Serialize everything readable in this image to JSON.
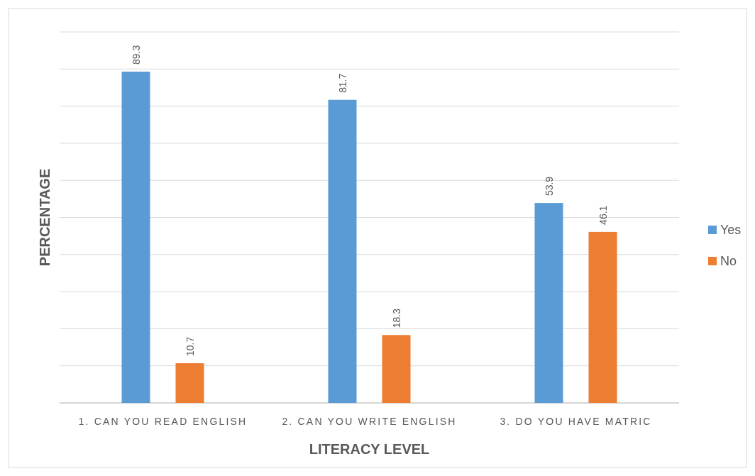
{
  "chart_data": {
    "type": "bar",
    "xlabel": "LITERACY LEVEL",
    "ylabel": "PERCENTAGE",
    "categories": [
      "1. CAN YOU READ ENGLISH",
      "2. CAN YOU WRITE ENGLISH",
      "3. DO YOU HAVE MATRIC"
    ],
    "series": [
      {
        "name": "Yes",
        "color": "#5b9bd5",
        "values": [
          89.3,
          81.7,
          53.9
        ]
      },
      {
        "name": "No",
        "color": "#ed7d31",
        "values": [
          10.7,
          18.3,
          46.1
        ]
      }
    ],
    "ylim": [
      0,
      100
    ],
    "yticks": [
      {
        "value": 0,
        "label": null
      },
      {
        "value": 10,
        "label": null
      },
      {
        "value": 20,
        "label": null
      },
      {
        "value": 30,
        "label": null
      },
      {
        "value": 40,
        "label": null
      },
      {
        "value": 50,
        "label": null
      },
      {
        "value": 60,
        "label": null
      },
      {
        "value": 70,
        "label": null
      },
      {
        "value": 80,
        "label": null
      },
      {
        "value": 90,
        "label": null
      },
      {
        "value": 100,
        "label": null
      }
    ],
    "grid": "y",
    "legend": "right",
    "data_labels": true,
    "tick_labels": "x"
  }
}
